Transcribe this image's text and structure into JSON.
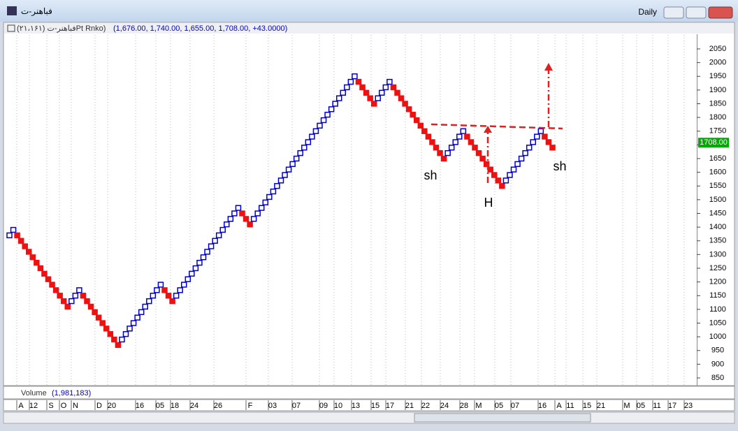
{
  "window": {
    "title": "فباهنر-ت",
    "interval": "Daily"
  },
  "chart_data": {
    "type": "renko",
    "header": "فباهنر-ت (۲۱،۱۶۱)Pt Rnko)",
    "ohlc_info": "(1,676.00, 1,740.00, 1,655.00, 1,708.00, +43.0000)",
    "box_size": 20,
    "up_color": "#0000cc",
    "down_color": "#ee1111",
    "values": [
      1380,
      1400,
      1360,
      1340,
      1320,
      1300,
      1280,
      1260,
      1240,
      1220,
      1200,
      1180,
      1160,
      1140,
      1120,
      1100,
      1140,
      1160,
      1180,
      1140,
      1120,
      1100,
      1080,
      1060,
      1040,
      1020,
      1000,
      980,
      960,
      1000,
      1020,
      1040,
      1060,
      1080,
      1100,
      1120,
      1140,
      1160,
      1180,
      1200,
      1160,
      1140,
      1120,
      1160,
      1180,
      1200,
      1220,
      1240,
      1260,
      1280,
      1300,
      1320,
      1340,
      1360,
      1380,
      1400,
      1420,
      1440,
      1460,
      1480,
      1440,
      1420,
      1400,
      1440,
      1460,
      1480,
      1500,
      1520,
      1540,
      1560,
      1580,
      1600,
      1620,
      1640,
      1660,
      1680,
      1700,
      1720,
      1740,
      1760,
      1780,
      1800,
      1820,
      1840,
      1860,
      1880,
      1900,
      1920,
      1940,
      1960,
      1920,
      1900,
      1880,
      1860,
      1840,
      1880,
      1900,
      1920,
      1940,
      1900,
      1880,
      1860,
      1840,
      1820,
      1800,
      1780,
      1760,
      1740,
      1720,
      1700,
      1680,
      1660,
      1640,
      1680,
      1700,
      1720,
      1740,
      1760,
      1720,
      1700,
      1680,
      1660,
      1640,
      1620,
      1600,
      1580,
      1560,
      1540,
      1580,
      1600,
      1620,
      1640,
      1660,
      1680,
      1700,
      1720,
      1740,
      1760,
      1720,
      1700,
      1680
    ],
    "ylim": [
      850,
      2050
    ],
    "yticks": [
      850,
      900,
      950,
      1000,
      1050,
      1100,
      1150,
      1200,
      1250,
      1300,
      1350,
      1400,
      1450,
      1500,
      1550,
      1600,
      1650,
      1700,
      1750,
      1800,
      1850,
      1900,
      1950,
      2000,
      2050
    ],
    "last_price": {
      "value": 1708,
      "label": "1708.00"
    },
    "date_labels": [
      "A",
      "12",
      "S",
      "O",
      "N",
      "D",
      "20",
      "16",
      "05",
      "18",
      "24",
      "26",
      "F",
      "03",
      "07",
      "09",
      "10",
      "13",
      "15",
      "17",
      "21",
      "22",
      "24",
      "28",
      "M",
      "05",
      "07",
      "16",
      "A",
      "11",
      "15",
      "21",
      "M",
      "05",
      "11",
      "17",
      "23"
    ],
    "annotations": [
      "sh",
      "H",
      "sh"
    ],
    "volume": {
      "label": "Volume",
      "value": "(1,981,183)"
    }
  }
}
